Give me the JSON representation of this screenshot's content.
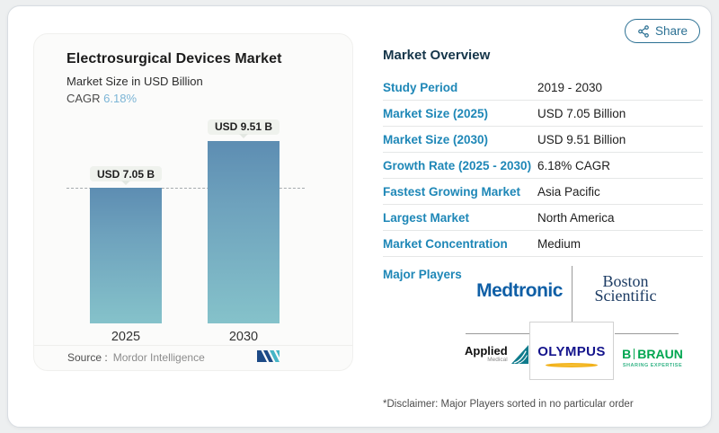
{
  "share": {
    "label": "Share",
    "icon": "share-nodes-icon",
    "color": "#2b7093"
  },
  "chart_panel": {
    "title": "Electrosurgical Devices Market",
    "subtitle": "Market Size in USD Billion",
    "cagr_label": "CAGR ",
    "cagr_value": "6.18%",
    "source_label": "Source :",
    "source_value": "Mordor Intelligence",
    "logo": "mordor-intelligence-logo"
  },
  "chart_data": {
    "type": "bar",
    "categories": [
      "2025",
      "2030"
    ],
    "values": [
      7.05,
      9.51
    ],
    "bar_labels": [
      "USD 7.05 B",
      "USD 9.51 B"
    ],
    "title": "Electrosurgical Devices Market",
    "ylabel": "Market Size in USD Billion",
    "ylim": [
      0,
      10.5
    ],
    "grid": false,
    "dashed_reference_value": 7.05,
    "bar_color_top": "#5d8db2",
    "bar_color_bottom": "#85c2ca"
  },
  "overview": {
    "title": "Market Overview",
    "rows": [
      {
        "label": "Study Period",
        "value": "2019 - 2030"
      },
      {
        "label": "Market Size (2025)",
        "value": "USD 7.05 Billion"
      },
      {
        "label": "Market Size (2030)",
        "value": "USD 9.51 Billion"
      },
      {
        "label": "Growth Rate (2025 - 2030)",
        "value": "6.18% CAGR"
      },
      {
        "label": "Fastest Growing Market",
        "value": "Asia Pacific"
      },
      {
        "label": "Largest Market",
        "value": "North America"
      },
      {
        "label": "Market Concentration",
        "value": "Medium"
      }
    ],
    "major_players_label": "Major Players",
    "players": [
      "Medtronic",
      "Boston Scientific",
      "Applied Medical",
      "Olympus",
      "B Braun"
    ],
    "disclaimer": "*Disclaimer: Major Players sorted in no particular order"
  },
  "logos": {
    "medtronic": "Medtronic",
    "boston_line1": "Boston",
    "boston_line2": "Scientific",
    "applied_line1": "Applied",
    "applied_line2": "Medical",
    "olympus": "OLYMPUS",
    "braun_b": "B",
    "braun_name": "BRAUN",
    "braun_tagline": "SHARING EXPERTISE"
  },
  "colors": {
    "label_blue": "#1e87b7",
    "header_navy": "#16364a",
    "medtronic_blue": "#0f5fa6",
    "boston_navy": "#1c3b63",
    "olympus_blue": "#14148c",
    "olympus_gold": "#f2b119",
    "braun_green": "#00a650",
    "applied_teal": "#0f7b8c"
  }
}
